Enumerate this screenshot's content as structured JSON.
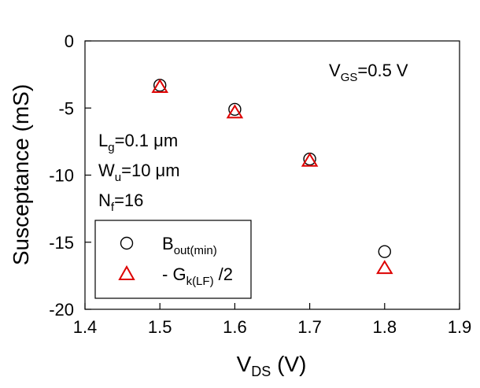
{
  "chart_data": {
    "type": "scatter",
    "xlabel": {
      "main": "V",
      "sub": "DS",
      "unit": "(V)"
    },
    "ylabel": "Susceptance  (mS)",
    "xlim": [
      1.4,
      1.9
    ],
    "ylim": [
      -20,
      0
    ],
    "x_ticks": [
      "1.4",
      "1.5",
      "1.6",
      "1.7",
      "1.8",
      "1.9"
    ],
    "y_ticks": [
      "0",
      "-5",
      "-10",
      "-15",
      "-20"
    ],
    "x_tick_values": [
      1.4,
      1.5,
      1.6,
      1.7,
      1.8,
      1.9
    ],
    "y_tick_values": [
      0,
      -5,
      -10,
      -15,
      -20
    ],
    "grid": false,
    "legend_position": "bottom-left",
    "series": [
      {
        "name_main": "B",
        "name_sub": "out(min)",
        "marker": "circle",
        "color": "#000000",
        "x": [
          1.5,
          1.6,
          1.7,
          1.8
        ],
        "y": [
          -3.3,
          -5.1,
          -8.8,
          -15.7
        ]
      },
      {
        "name_main": "- G",
        "name_sub": "k(LF)",
        "name_tail": " /2",
        "marker": "triangle",
        "color": "#dd0000",
        "x": [
          1.5,
          1.6,
          1.7,
          1.8
        ],
        "y": [
          -3.4,
          -5.3,
          -8.9,
          -16.9
        ]
      }
    ],
    "annotations": {
      "vgs": {
        "main": "V",
        "sub": "GS",
        "tail": "=0.5 V"
      },
      "lg": {
        "main": "L",
        "sub": "g",
        "tail": "=0.1 μm"
      },
      "wu": {
        "main": "W",
        "sub": "u",
        "tail": "=10 μm"
      },
      "nf": {
        "main": "N",
        "sub": "f",
        "tail": "=16"
      }
    }
  }
}
